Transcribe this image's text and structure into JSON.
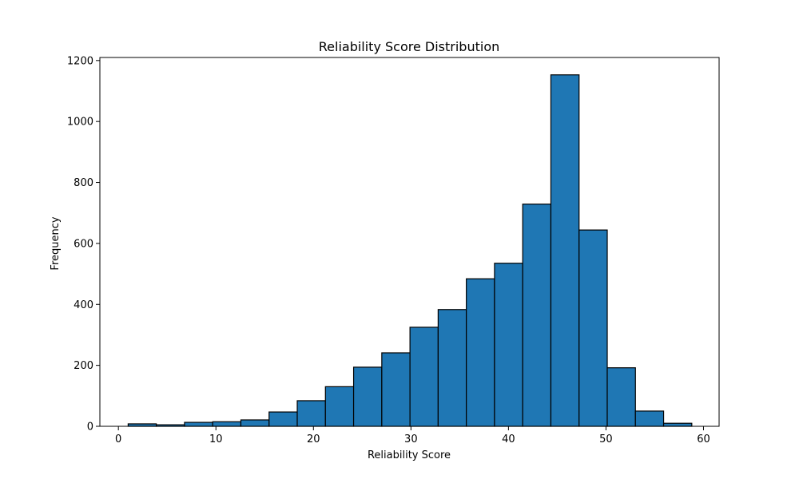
{
  "chart_data": {
    "type": "bar",
    "title": "Reliability Score Distribution",
    "xlabel": "Reliability Score",
    "ylabel": "Frequency",
    "xlim": [
      -1.9,
      61.6
    ],
    "ylim": [
      0,
      1210
    ],
    "xticks": [
      0,
      10,
      20,
      30,
      40,
      50,
      60
    ],
    "yticks": [
      0,
      200,
      400,
      600,
      800,
      1000,
      1200
    ],
    "bin_edges": [
      1.0,
      3.89,
      6.78,
      9.67,
      12.56,
      15.45,
      18.34,
      21.23,
      24.12,
      27.01,
      29.9,
      32.79,
      35.68,
      38.57,
      41.46,
      44.35,
      47.24,
      50.13,
      53.02,
      55.91,
      58.8
    ],
    "values": [
      8,
      5,
      13,
      15,
      21,
      47,
      84,
      130,
      194,
      241,
      325,
      383,
      484,
      535,
      729,
      1153,
      644,
      192,
      50,
      10
    ],
    "bar_color": "#1f77b4",
    "edge_color": "#000000",
    "grid": false
  }
}
